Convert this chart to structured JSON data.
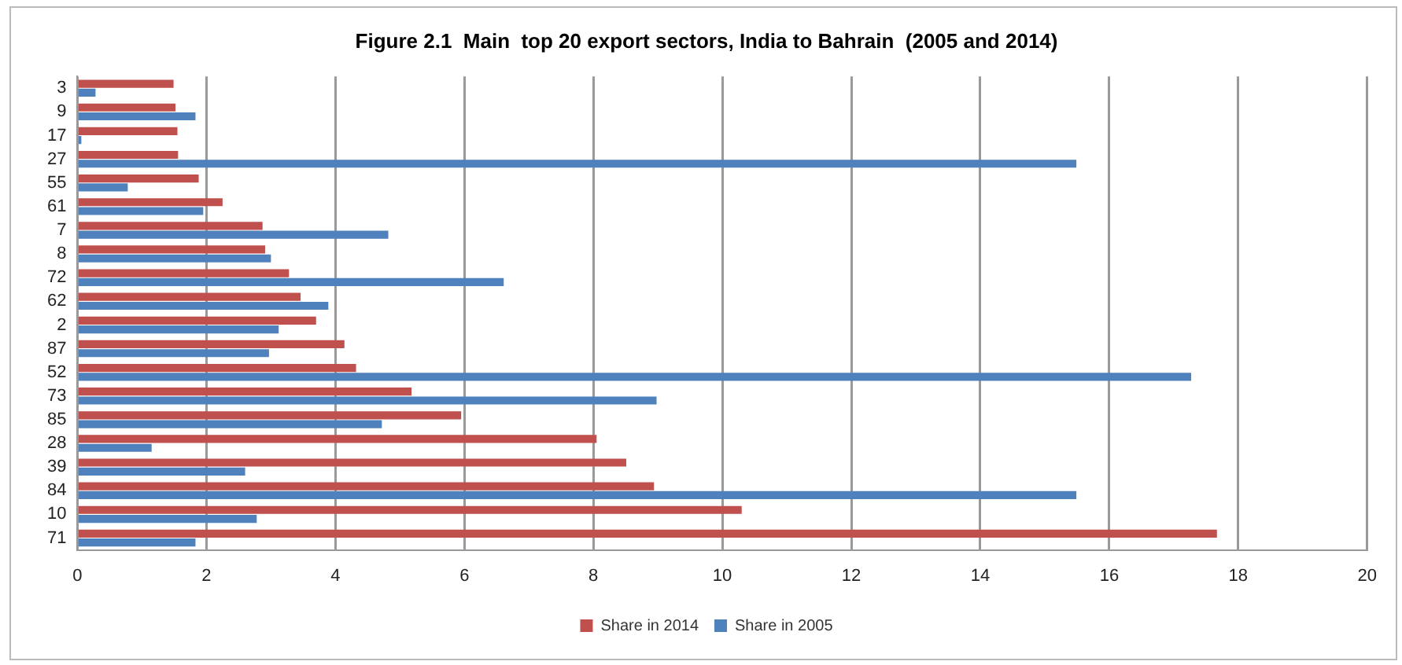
{
  "chart_data": {
    "type": "bar",
    "orientation": "horizontal",
    "title": "Figure 2.1  Main  top 20 export sectors, India to Bahrain  (2005 and 2014)",
    "categories": [
      "3",
      "9",
      "17",
      "27",
      "55",
      "61",
      "7",
      "8",
      "72",
      "62",
      "2",
      "87",
      "52",
      "73",
      "85",
      "28",
      "39",
      "84",
      "10",
      "71"
    ],
    "series": [
      {
        "name": "Share in 2014",
        "color": "#c0504d",
        "values": [
          1.49,
          1.52,
          1.55,
          1.56,
          1.88,
          2.25,
          2.87,
          2.91,
          3.28,
          3.46,
          3.7,
          4.14,
          4.32,
          5.18,
          5.95,
          8.05,
          8.51,
          8.94,
          10.3,
          17.67
        ]
      },
      {
        "name": "Share in 2005",
        "color": "#4f81bd",
        "values": [
          0.28,
          1.83,
          0.06,
          15.49,
          0.78,
          1.95,
          4.82,
          3.0,
          6.61,
          3.89,
          3.12,
          2.97,
          17.27,
          8.98,
          4.72,
          1.15,
          2.6,
          15.49,
          2.78,
          1.83
        ]
      }
    ],
    "xlim": [
      0,
      20
    ],
    "xticks": [
      0,
      2,
      4,
      6,
      8,
      10,
      12,
      14,
      16,
      18,
      20
    ],
    "grid": "x",
    "legend": "bottom"
  }
}
